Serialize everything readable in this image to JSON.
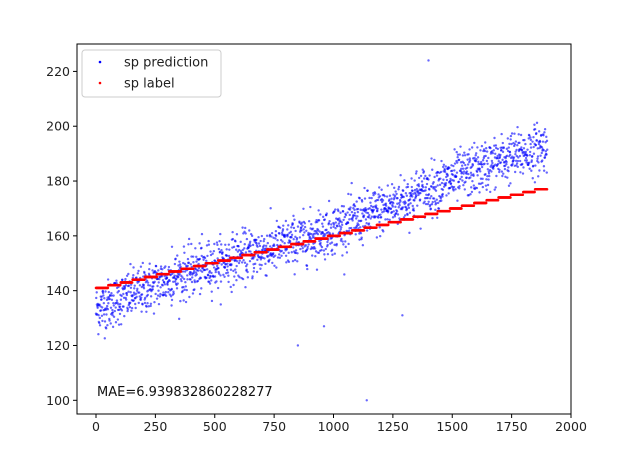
{
  "chart_data": {
    "type": "scatter",
    "xlim": [
      -80,
      2000
    ],
    "ylim": [
      95,
      230
    ],
    "x_ticks": [
      0,
      250,
      500,
      750,
      1000,
      1250,
      1500,
      1750,
      2000
    ],
    "y_ticks": [
      100,
      120,
      140,
      160,
      180,
      200,
      220
    ],
    "x_tick_labels": [
      "0",
      "250",
      "500",
      "750",
      "1000",
      "1250",
      "1500",
      "1750",
      "2000"
    ],
    "y_tick_labels": [
      "100",
      "120",
      "140",
      "160",
      "180",
      "200",
      "220"
    ],
    "grid": false,
    "legend_position": "top-left",
    "n_points": 1900,
    "series": [
      {
        "name": "sp prediction",
        "color": "#0000ff",
        "trend_start": [
          0,
          133
        ],
        "trend_end": [
          1900,
          192
        ],
        "spread": 4.5,
        "outliers": [
          [
            1400,
            224
          ],
          [
            850,
            120
          ],
          [
            1140,
            100
          ],
          [
            1290,
            131
          ],
          [
            960,
            127
          ],
          [
            320,
            156
          ]
        ]
      },
      {
        "name": "sp label",
        "color": "#ff0000",
        "trend_start": [
          0,
          141
        ],
        "trend_end": [
          1900,
          178
        ]
      }
    ],
    "annotation": "MAE=6.939832860228277"
  }
}
